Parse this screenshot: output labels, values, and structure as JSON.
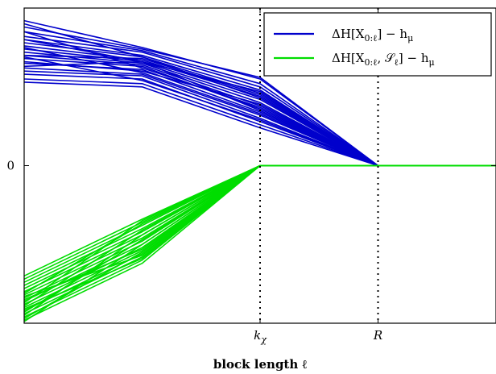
{
  "chart_data": {
    "type": "line",
    "title": "",
    "xlabel": "block length ℓ",
    "ylabel": "",
    "grid": false,
    "legend_position": "top-right",
    "x": [
      0,
      1,
      2,
      3,
      4
    ],
    "xlim": [
      0,
      4
    ],
    "ylim": [
      -1.0,
      1.0
    ],
    "x_ticks": [
      {
        "value": 2,
        "label": "k",
        "sub": "χ"
      },
      {
        "value": 3,
        "label": "R",
        "sub": ""
      }
    ],
    "y_ticks": [
      {
        "value": 0,
        "label": "0"
      }
    ],
    "vlines": [
      2,
      3
    ],
    "series": [
      {
        "name": "ΔH[X₀:ℓ] − hμ",
        "legend_label": "ΔH[X",
        "legend_sub": "0:ℓ",
        "legend_tail": "] − h",
        "legend_tail_sub": "μ",
        "color": "#0000cc",
        "lines": [
          [
            0.92,
            0.75,
            0.55,
            0.0,
            0.0
          ],
          [
            0.88,
            0.74,
            0.56,
            0.0,
            0.0
          ],
          [
            0.85,
            0.73,
            0.52,
            0.0,
            0.0
          ],
          [
            0.82,
            0.72,
            0.5,
            0.0,
            0.0
          ],
          [
            0.8,
            0.7,
            0.48,
            0.0,
            0.0
          ],
          [
            0.78,
            0.69,
            0.46,
            0.0,
            0.0
          ],
          [
            0.76,
            0.67,
            0.44,
            0.0,
            0.0
          ],
          [
            0.74,
            0.66,
            0.42,
            0.0,
            0.0
          ],
          [
            0.72,
            0.65,
            0.4,
            0.0,
            0.0
          ],
          [
            0.7,
            0.64,
            0.38,
            0.0,
            0.0
          ],
          [
            0.68,
            0.63,
            0.36,
            0.0,
            0.0
          ],
          [
            0.65,
            0.61,
            0.34,
            0.0,
            0.0
          ],
          [
            0.62,
            0.58,
            0.32,
            0.0,
            0.0
          ],
          [
            0.6,
            0.57,
            0.3,
            0.0,
            0.0
          ],
          [
            0.58,
            0.55,
            0.28,
            0.0,
            0.0
          ],
          [
            0.55,
            0.52,
            0.26,
            0.0,
            0.0
          ],
          [
            0.53,
            0.5,
            0.24,
            0.0,
            0.0
          ],
          [
            0.8,
            0.66,
            0.47,
            0.0,
            0.0
          ],
          [
            0.7,
            0.68,
            0.45,
            0.0,
            0.0
          ],
          [
            0.9,
            0.69,
            0.43,
            0.0,
            0.0
          ],
          [
            0.66,
            0.6,
            0.39,
            0.0,
            0.0
          ],
          [
            0.85,
            0.62,
            0.37,
            0.0,
            0.0
          ],
          [
            0.63,
            0.66,
            0.35,
            0.0,
            0.0
          ],
          [
            0.75,
            0.59,
            0.33,
            0.0,
            0.0
          ],
          [
            0.69,
            0.54,
            0.29,
            0.0,
            0.0
          ]
        ]
      },
      {
        "name": "ΔH[X₀:ℓ, Sℓ] − hμ",
        "legend_label": "ΔH[X",
        "legend_sub": "0:ℓ",
        "legend_mid": ", 𝒮",
        "legend_mid_sub": "ℓ",
        "legend_tail": "] − h",
        "legend_tail_sub": "μ",
        "color": "#00dd00",
        "lines": [
          [
            -0.98,
            -0.62,
            0.0,
            0.0,
            0.0
          ],
          [
            -0.96,
            -0.6,
            0.0,
            0.0,
            0.0
          ],
          [
            -0.94,
            -0.58,
            0.0,
            0.0,
            0.0
          ],
          [
            -0.92,
            -0.56,
            0.0,
            0.0,
            0.0
          ],
          [
            -0.9,
            -0.54,
            0.0,
            0.0,
            0.0
          ],
          [
            -0.88,
            -0.52,
            0.0,
            0.0,
            0.0
          ],
          [
            -0.86,
            -0.5,
            0.0,
            0.0,
            0.0
          ],
          [
            -0.84,
            -0.48,
            0.0,
            0.0,
            0.0
          ],
          [
            -0.82,
            -0.46,
            0.0,
            0.0,
            0.0
          ],
          [
            -0.8,
            -0.44,
            0.0,
            0.0,
            0.0
          ],
          [
            -0.78,
            -0.42,
            0.0,
            0.0,
            0.0
          ],
          [
            -0.76,
            -0.4,
            0.0,
            0.0,
            0.0
          ],
          [
            -0.74,
            -0.38,
            0.0,
            0.0,
            0.0
          ],
          [
            -0.72,
            -0.36,
            0.0,
            0.0,
            0.0
          ],
          [
            -0.7,
            -0.34,
            0.0,
            0.0,
            0.0
          ],
          [
            -0.97,
            -0.55,
            0.0,
            0.0,
            0.0
          ],
          [
            -0.93,
            -0.47,
            0.0,
            0.0,
            0.0
          ],
          [
            -0.89,
            -0.41,
            0.0,
            0.0,
            0.0
          ],
          [
            -0.85,
            -0.53,
            0.0,
            0.0,
            0.0
          ],
          [
            -0.81,
            -0.37,
            0.0,
            0.0,
            0.0
          ],
          [
            -0.95,
            -0.44,
            0.0,
            0.0,
            0.0
          ],
          [
            -0.91,
            -0.59,
            0.0,
            0.0,
            0.0
          ],
          [
            -0.87,
            -0.35,
            0.0,
            0.0,
            0.0
          ],
          [
            -0.99,
            -0.5,
            0.0,
            0.0,
            0.0
          ],
          [
            -0.83,
            -0.57,
            0.0,
            0.0,
            0.0
          ]
        ]
      }
    ]
  }
}
